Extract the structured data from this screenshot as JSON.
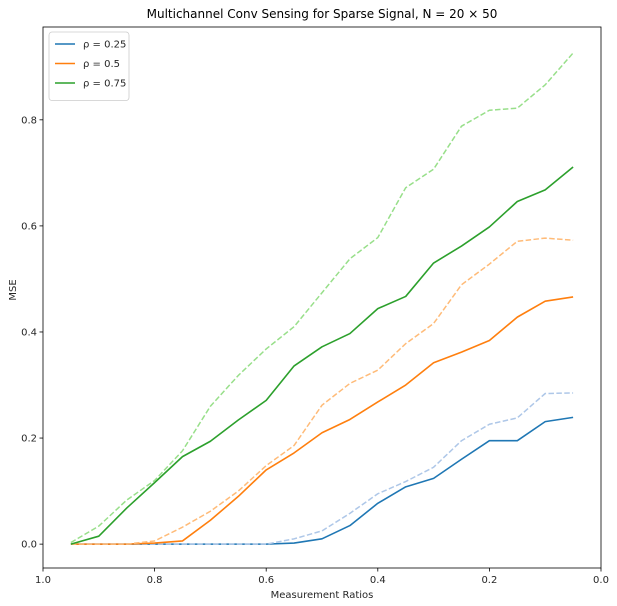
{
  "chart_data": {
    "type": "line",
    "title": "Multichannel Conv Sensing for Sparse Signal, N = 20 × 50",
    "xlabel": "Measurement Ratios",
    "ylabel": "MSE",
    "xlim": [
      1.0,
      0.0
    ],
    "ylim": [
      -0.045,
      0.975
    ],
    "x_inverted": true,
    "grid": false,
    "legend_position": "top-left",
    "xticks": [
      1.0,
      0.8,
      0.6,
      0.4,
      0.2,
      0.0
    ],
    "xtick_labels": [
      "1.0",
      "0.8",
      "0.6",
      "0.4",
      "0.2",
      "0.0"
    ],
    "yticks": [
      0.0,
      0.2,
      0.4,
      0.6,
      0.8
    ],
    "ytick_labels": [
      "0.0",
      "0.2",
      "0.4",
      "0.6",
      "0.8"
    ],
    "x": [
      0.95,
      0.9,
      0.85,
      0.8,
      0.75,
      0.7,
      0.65,
      0.6,
      0.55,
      0.5,
      0.45,
      0.4,
      0.35,
      0.3,
      0.25,
      0.2,
      0.15,
      0.1,
      0.05
    ],
    "series": [
      {
        "name": "ρ = 0.25",
        "style": "solid",
        "color": "#1f77b4",
        "values": [
          0.0,
          0.0,
          0.0,
          0.0,
          0.0,
          0.0,
          0.0,
          0.0,
          0.002,
          0.01,
          0.035,
          0.077,
          0.108,
          0.124,
          0.16,
          0.195,
          0.195,
          0.231,
          0.239
        ]
      },
      {
        "style": "dashed",
        "color": "#aec7e8",
        "values": [
          0.0,
          0.0,
          0.0,
          0.0,
          0.0,
          0.0,
          0.0,
          0.0,
          0.01,
          0.025,
          0.058,
          0.095,
          0.118,
          0.145,
          0.195,
          0.226,
          0.238,
          0.284,
          0.285
        ]
      },
      {
        "name": "ρ = 0.5",
        "style": "solid",
        "color": "#ff7f0e",
        "values": [
          0.0,
          0.0,
          0.0,
          0.002,
          0.006,
          0.045,
          0.09,
          0.14,
          0.172,
          0.21,
          0.235,
          0.268,
          0.3,
          0.342,
          0.362,
          0.384,
          0.428,
          0.458,
          0.466
        ]
      },
      {
        "style": "dashed",
        "color": "#ffbb78",
        "values": [
          0.0,
          0.0,
          0.0,
          0.006,
          0.032,
          0.062,
          0.1,
          0.148,
          0.186,
          0.262,
          0.303,
          0.328,
          0.378,
          0.416,
          0.489,
          0.528,
          0.571,
          0.577,
          0.573
        ]
      },
      {
        "name": "ρ = 0.75",
        "style": "solid",
        "color": "#2ca02c",
        "values": [
          0.0,
          0.015,
          0.068,
          0.116,
          0.165,
          0.194,
          0.234,
          0.271,
          0.336,
          0.372,
          0.397,
          0.444,
          0.467,
          0.53,
          0.562,
          0.598,
          0.646,
          0.668,
          0.711
        ]
      },
      {
        "style": "dashed",
        "color": "#98df8a",
        "values": [
          0.003,
          0.034,
          0.083,
          0.12,
          0.176,
          0.26,
          0.318,
          0.368,
          0.41,
          0.474,
          0.538,
          0.578,
          0.672,
          0.707,
          0.788,
          0.818,
          0.822,
          0.866,
          0.926
        ]
      }
    ]
  }
}
